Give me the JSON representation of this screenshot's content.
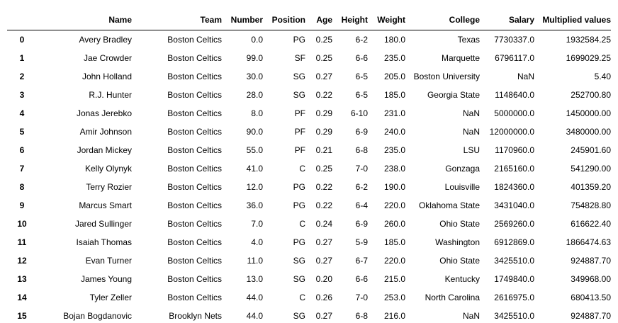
{
  "table": {
    "columns": [
      "",
      "Name",
      "Team",
      "Number",
      "Position",
      "Age",
      "Height",
      "Weight",
      "College",
      "Salary",
      "Multiplied values"
    ],
    "rows": [
      [
        "0",
        "Avery Bradley",
        "Boston Celtics",
        "0.0",
        "PG",
        "0.25",
        "6-2",
        "180.0",
        "Texas",
        "7730337.0",
        "1932584.25"
      ],
      [
        "1",
        "Jae Crowder",
        "Boston Celtics",
        "99.0",
        "SF",
        "0.25",
        "6-6",
        "235.0",
        "Marquette",
        "6796117.0",
        "1699029.25"
      ],
      [
        "2",
        "John Holland",
        "Boston Celtics",
        "30.0",
        "SG",
        "0.27",
        "6-5",
        "205.0",
        "Boston University",
        "NaN",
        "5.40"
      ],
      [
        "3",
        "R.J. Hunter",
        "Boston Celtics",
        "28.0",
        "SG",
        "0.22",
        "6-5",
        "185.0",
        "Georgia State",
        "1148640.0",
        "252700.80"
      ],
      [
        "4",
        "Jonas Jerebko",
        "Boston Celtics",
        "8.0",
        "PF",
        "0.29",
        "6-10",
        "231.0",
        "NaN",
        "5000000.0",
        "1450000.00"
      ],
      [
        "5",
        "Amir Johnson",
        "Boston Celtics",
        "90.0",
        "PF",
        "0.29",
        "6-9",
        "240.0",
        "NaN",
        "12000000.0",
        "3480000.00"
      ],
      [
        "6",
        "Jordan Mickey",
        "Boston Celtics",
        "55.0",
        "PF",
        "0.21",
        "6-8",
        "235.0",
        "LSU",
        "1170960.0",
        "245901.60"
      ],
      [
        "7",
        "Kelly Olynyk",
        "Boston Celtics",
        "41.0",
        "C",
        "0.25",
        "7-0",
        "238.0",
        "Gonzaga",
        "2165160.0",
        "541290.00"
      ],
      [
        "8",
        "Terry Rozier",
        "Boston Celtics",
        "12.0",
        "PG",
        "0.22",
        "6-2",
        "190.0",
        "Louisville",
        "1824360.0",
        "401359.20"
      ],
      [
        "9",
        "Marcus Smart",
        "Boston Celtics",
        "36.0",
        "PG",
        "0.22",
        "6-4",
        "220.0",
        "Oklahoma State",
        "3431040.0",
        "754828.80"
      ],
      [
        "10",
        "Jared Sullinger",
        "Boston Celtics",
        "7.0",
        "C",
        "0.24",
        "6-9",
        "260.0",
        "Ohio State",
        "2569260.0",
        "616622.40"
      ],
      [
        "11",
        "Isaiah Thomas",
        "Boston Celtics",
        "4.0",
        "PG",
        "0.27",
        "5-9",
        "185.0",
        "Washington",
        "6912869.0",
        "1866474.63"
      ],
      [
        "12",
        "Evan Turner",
        "Boston Celtics",
        "11.0",
        "SG",
        "0.27",
        "6-7",
        "220.0",
        "Ohio State",
        "3425510.0",
        "924887.70"
      ],
      [
        "13",
        "James Young",
        "Boston Celtics",
        "13.0",
        "SG",
        "0.20",
        "6-6",
        "215.0",
        "Kentucky",
        "1749840.0",
        "349968.00"
      ],
      [
        "14",
        "Tyler Zeller",
        "Boston Celtics",
        "44.0",
        "C",
        "0.26",
        "7-0",
        "253.0",
        "North Carolina",
        "2616975.0",
        "680413.50"
      ],
      [
        "15",
        "Bojan Bogdanovic",
        "Brooklyn Nets",
        "44.0",
        "SG",
        "0.27",
        "6-8",
        "216.0",
        "NaN",
        "3425510.0",
        "924887.70"
      ]
    ]
  }
}
